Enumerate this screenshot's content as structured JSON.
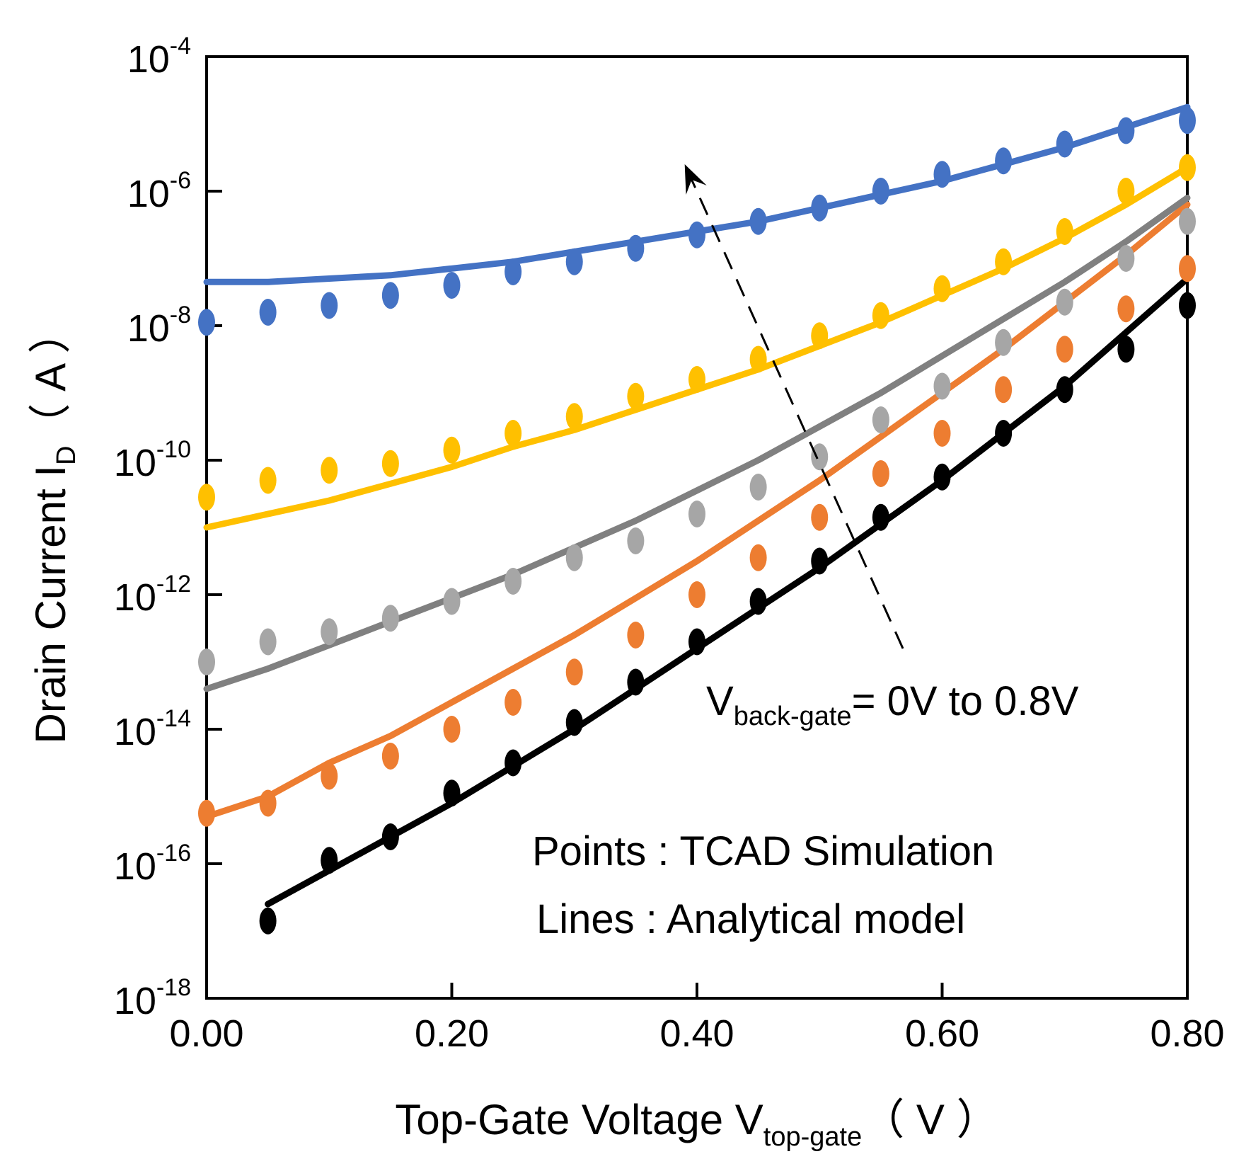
{
  "chart_data": {
    "type": "line",
    "title": "",
    "xlabel": {
      "main": "Top-Gate Voltage V",
      "sub": "top-gate",
      "unit": "（ V ）"
    },
    "ylabel": {
      "main": "Drain Current I",
      "sub": "D",
      "unit": "（ A ）"
    },
    "xlim": [
      0,
      0.8
    ],
    "ylim_log10": [
      -18,
      -4
    ],
    "x_ticks": [
      {
        "value": 0.0,
        "label": "0.00"
      },
      {
        "value": 0.2,
        "label": "0.20"
      },
      {
        "value": 0.4,
        "label": "0.40"
      },
      {
        "value": 0.6,
        "label": "0.60"
      },
      {
        "value": 0.8,
        "label": "0.80"
      }
    ],
    "y_ticks": [
      {
        "exp": -4,
        "base": "10",
        "sup": "-4"
      },
      {
        "exp": -6,
        "base": "10",
        "sup": "-6"
      },
      {
        "exp": -8,
        "base": "10",
        "sup": "-8"
      },
      {
        "exp": -10,
        "base": "10",
        "sup": "-10"
      },
      {
        "exp": -12,
        "base": "10",
        "sup": "-12"
      },
      {
        "exp": -14,
        "base": "10",
        "sup": "-14"
      },
      {
        "exp": -16,
        "base": "10",
        "sup": "-16"
      },
      {
        "exp": -18,
        "base": "10",
        "sup": "-18"
      }
    ],
    "grid": false,
    "series": [
      {
        "name": "Vback-gate = 0V",
        "color": "#000000",
        "line_x": [
          0.05,
          0.1,
          0.15,
          0.2,
          0.25,
          0.3,
          0.35,
          0.4,
          0.45,
          0.5,
          0.55,
          0.6,
          0.65,
          0.7,
          0.75,
          0.8
        ],
        "line_log10": [
          -16.6,
          -16.1,
          -15.6,
          -15.1,
          -14.55,
          -14.0,
          -13.4,
          -12.8,
          -12.2,
          -11.6,
          -10.95,
          -10.3,
          -9.6,
          -8.9,
          -8.1,
          -7.3
        ],
        "points_x": [
          0.05,
          0.1,
          0.15,
          0.2,
          0.25,
          0.3,
          0.35,
          0.4,
          0.45,
          0.5,
          0.55,
          0.6,
          0.65,
          0.7,
          0.75,
          0.8
        ],
        "points_log10": [
          -16.85,
          -15.95,
          -15.6,
          -14.95,
          -14.5,
          -13.9,
          -13.3,
          -12.7,
          -12.1,
          -11.5,
          -10.85,
          -10.25,
          -9.6,
          -8.95,
          -8.35,
          -7.7
        ]
      },
      {
        "name": "orange",
        "color": "#ed7d31",
        "line_x": [
          0.0,
          0.05,
          0.1,
          0.15,
          0.2,
          0.25,
          0.3,
          0.35,
          0.4,
          0.45,
          0.5,
          0.55,
          0.6,
          0.65,
          0.7,
          0.75,
          0.8
        ],
        "line_log10": [
          -15.3,
          -15.0,
          -14.5,
          -14.1,
          -13.6,
          -13.1,
          -12.6,
          -12.05,
          -11.5,
          -10.9,
          -10.3,
          -9.65,
          -9.0,
          -8.35,
          -7.65,
          -6.95,
          -6.2
        ],
        "points_x": [
          0.0,
          0.05,
          0.1,
          0.15,
          0.2,
          0.25,
          0.3,
          0.35,
          0.4,
          0.45,
          0.5,
          0.55,
          0.6,
          0.65,
          0.7,
          0.75,
          0.8
        ],
        "points_log10": [
          -15.25,
          -15.1,
          -14.7,
          -14.4,
          -14.0,
          -13.6,
          -13.15,
          -12.6,
          -12.0,
          -11.45,
          -10.85,
          -10.2,
          -9.6,
          -8.95,
          -8.35,
          -7.75,
          -7.15
        ]
      },
      {
        "name": "gray",
        "color": "#808080",
        "point_color": "#a6a6a6",
        "line_x": [
          0.0,
          0.05,
          0.1,
          0.15,
          0.2,
          0.25,
          0.3,
          0.35,
          0.4,
          0.45,
          0.5,
          0.55,
          0.6,
          0.65,
          0.7,
          0.75,
          0.8
        ],
        "line_log10": [
          -13.4,
          -13.1,
          -12.75,
          -12.4,
          -12.05,
          -11.7,
          -11.3,
          -10.9,
          -10.45,
          -10.0,
          -9.5,
          -9.0,
          -8.45,
          -7.9,
          -7.35,
          -6.75,
          -6.1
        ],
        "points_x": [
          0.0,
          0.05,
          0.1,
          0.15,
          0.2,
          0.25,
          0.3,
          0.35,
          0.4,
          0.45,
          0.5,
          0.55,
          0.6,
          0.65,
          0.7,
          0.75,
          0.8
        ],
        "points_log10": [
          -13.0,
          -12.7,
          -12.55,
          -12.35,
          -12.1,
          -11.8,
          -11.45,
          -11.2,
          -10.8,
          -10.4,
          -9.95,
          -9.4,
          -8.9,
          -8.25,
          -7.65,
          -7.0,
          -6.45
        ]
      },
      {
        "name": "yellow",
        "color": "#ffc000",
        "line_x": [
          0.0,
          0.05,
          0.1,
          0.15,
          0.2,
          0.25,
          0.3,
          0.35,
          0.4,
          0.45,
          0.5,
          0.55,
          0.6,
          0.65,
          0.7,
          0.75,
          0.8
        ],
        "line_log10": [
          -11.0,
          -10.8,
          -10.6,
          -10.35,
          -10.1,
          -9.8,
          -9.55,
          -9.25,
          -8.95,
          -8.65,
          -8.3,
          -7.95,
          -7.55,
          -7.15,
          -6.7,
          -6.2,
          -5.65
        ],
        "points_x": [
          0.0,
          0.05,
          0.1,
          0.15,
          0.2,
          0.25,
          0.3,
          0.35,
          0.4,
          0.45,
          0.5,
          0.55,
          0.6,
          0.65,
          0.7,
          0.75,
          0.8
        ],
        "points_log10": [
          -10.55,
          -10.3,
          -10.15,
          -10.05,
          -9.85,
          -9.6,
          -9.35,
          -9.05,
          -8.8,
          -8.5,
          -8.15,
          -7.85,
          -7.45,
          -7.05,
          -6.6,
          -6.0,
          -5.65
        ]
      },
      {
        "name": "Vback-gate = 0.8V",
        "color": "#4472c4",
        "line_x": [
          0.0,
          0.05,
          0.1,
          0.15,
          0.2,
          0.25,
          0.3,
          0.35,
          0.4,
          0.45,
          0.5,
          0.55,
          0.6,
          0.65,
          0.7,
          0.75,
          0.8
        ],
        "line_log10": [
          -7.35,
          -7.35,
          -7.3,
          -7.25,
          -7.15,
          -7.05,
          -6.9,
          -6.75,
          -6.6,
          -6.45,
          -6.25,
          -6.05,
          -5.85,
          -5.6,
          -5.35,
          -5.05,
          -4.75
        ],
        "points_x": [
          0.0,
          0.05,
          0.1,
          0.15,
          0.2,
          0.25,
          0.3,
          0.35,
          0.4,
          0.45,
          0.5,
          0.55,
          0.6,
          0.65,
          0.7,
          0.75,
          0.8
        ],
        "points_log10": [
          -7.95,
          -7.8,
          -7.7,
          -7.55,
          -7.4,
          -7.2,
          -7.05,
          -6.85,
          -6.65,
          -6.45,
          -6.25,
          -6.0,
          -5.75,
          -5.55,
          -5.3,
          -5.1,
          -4.95
        ]
      }
    ],
    "arrow": {
      "from": {
        "x": 0.568,
        "log10": -12.8
      },
      "to": {
        "x": 0.39,
        "log10": -5.6
      },
      "style": "dashed"
    },
    "annotations": {
      "vbg": {
        "main": "V",
        "sub": "back-gate",
        "rest": "= 0V to 0.8V"
      },
      "points": "Points : TCAD Simulation",
      "lines": "Lines :  Analytical model"
    }
  }
}
